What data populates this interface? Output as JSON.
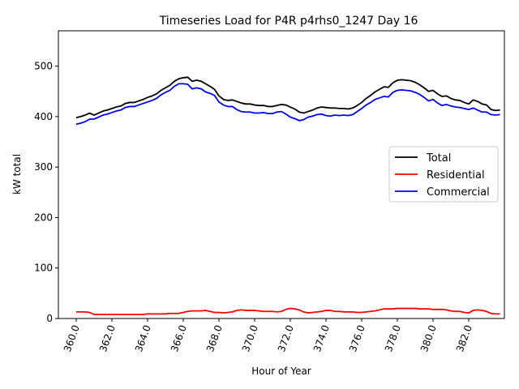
{
  "chart_data": {
    "type": "line",
    "title": "Timeseries Load for P4R p4rhs0_1247  Day 16",
    "xlabel": "Hour of Year",
    "ylabel": "kW total",
    "xlim": [
      359.0,
      384.0
    ],
    "ylim": [
      0,
      570
    ],
    "xticks": [
      360,
      362,
      364,
      366,
      368,
      370,
      372,
      374,
      376,
      378,
      380,
      382
    ],
    "xtick_labels": [
      "360.0",
      "362.0",
      "364.0",
      "366.0",
      "368.0",
      "370.0",
      "372.0",
      "374.0",
      "376.0",
      "378.0",
      "380.0",
      "382.0"
    ],
    "yticks": [
      0,
      100,
      200,
      300,
      400,
      500
    ],
    "ytick_labels": [
      "0",
      "100",
      "200",
      "300",
      "400",
      "500"
    ],
    "grid": false,
    "legend_position": "center-right",
    "x": [
      360.0,
      360.25,
      360.5,
      360.75,
      361.0,
      361.25,
      361.5,
      361.75,
      362.0,
      362.25,
      362.5,
      362.75,
      363.0,
      363.25,
      363.5,
      363.75,
      364.0,
      364.25,
      364.5,
      364.75,
      365.0,
      365.25,
      365.5,
      365.75,
      366.0,
      366.25,
      366.5,
      366.75,
      367.0,
      367.25,
      367.5,
      367.75,
      368.0,
      368.25,
      368.5,
      368.75,
      369.0,
      369.25,
      369.5,
      369.75,
      370.0,
      370.25,
      370.5,
      370.75,
      371.0,
      371.25,
      371.5,
      371.75,
      372.0,
      372.25,
      372.5,
      372.75,
      373.0,
      373.25,
      373.5,
      373.75,
      374.0,
      374.25,
      374.5,
      374.75,
      375.0,
      375.25,
      375.5,
      375.75,
      376.0,
      376.25,
      376.5,
      376.75,
      377.0,
      377.25,
      377.5,
      377.75,
      378.0,
      378.25,
      378.5,
      378.75,
      379.0,
      379.25,
      379.5,
      379.75,
      380.0,
      380.25,
      380.5,
      380.75,
      381.0,
      381.25,
      381.5,
      381.75,
      382.0,
      382.25,
      382.5,
      382.75,
      383.0,
      383.25,
      383.5,
      383.75
    ],
    "series": [
      {
        "name": "Total",
        "color": "#000000",
        "values": [
          398,
          400,
          403,
          407,
          403,
          407,
          411,
          413,
          416,
          419,
          421,
          426,
          428,
          428,
          431,
          434,
          438,
          441,
          445,
          452,
          457,
          462,
          470,
          475,
          477,
          478,
          470,
          472,
          470,
          465,
          460,
          454,
          441,
          434,
          432,
          433,
          430,
          427,
          425,
          425,
          423,
          422,
          422,
          420,
          420,
          422,
          424,
          423,
          419,
          415,
          409,
          407,
          410,
          413,
          417,
          419,
          418,
          417,
          417,
          416,
          416,
          415,
          417,
          422,
          428,
          436,
          442,
          449,
          454,
          459,
          458,
          467,
          472,
          473,
          472,
          471,
          468,
          463,
          457,
          450,
          452,
          445,
          440,
          441,
          436,
          433,
          432,
          428,
          425,
          433,
          430,
          425,
          423,
          414,
          412,
          413
        ],
        "labels_count": 96
      },
      {
        "name": "Residential",
        "color": "#ff0000",
        "values": [
          13,
          13,
          13,
          12,
          8,
          8,
          8,
          8,
          8,
          8,
          8,
          8,
          8,
          8,
          8,
          8,
          9,
          9,
          9,
          9,
          9,
          10,
          10,
          10,
          12,
          14,
          15,
          15,
          15,
          16,
          14,
          12,
          12,
          11,
          12,
          13,
          16,
          17,
          16,
          16,
          16,
          15,
          14,
          14,
          14,
          13,
          14,
          18,
          20,
          19,
          17,
          13,
          11,
          12,
          13,
          14,
          16,
          16,
          14,
          14,
          13,
          13,
          13,
          12,
          12,
          13,
          14,
          15,
          17,
          19,
          19,
          19,
          20,
          20,
          20,
          20,
          20,
          19,
          19,
          19,
          18,
          18,
          18,
          17,
          15,
          14,
          14,
          12,
          11,
          16,
          17,
          16,
          14,
          10,
          9,
          9
        ]
      },
      {
        "name": "Commercial",
        "color": "#0000ff",
        "values": [
          385,
          387,
          390,
          395,
          395,
          399,
          403,
          405,
          408,
          411,
          413,
          418,
          420,
          420,
          423,
          426,
          429,
          432,
          436,
          443,
          448,
          452,
          460,
          465,
          465,
          464,
          455,
          457,
          455,
          449,
          446,
          442,
          429,
          423,
          420,
          420,
          414,
          410,
          409,
          409,
          407,
          407,
          408,
          406,
          406,
          409,
          410,
          405,
          399,
          396,
          392,
          394,
          399,
          401,
          404,
          405,
          402,
          401,
          403,
          402,
          403,
          402,
          404,
          410,
          416,
          423,
          428,
          434,
          437,
          440,
          439,
          448,
          452,
          453,
          452,
          451,
          448,
          444,
          438,
          431,
          434,
          427,
          422,
          424,
          421,
          419,
          418,
          416,
          414,
          417,
          413,
          409,
          409,
          404,
          403,
          404
        ]
      }
    ]
  }
}
